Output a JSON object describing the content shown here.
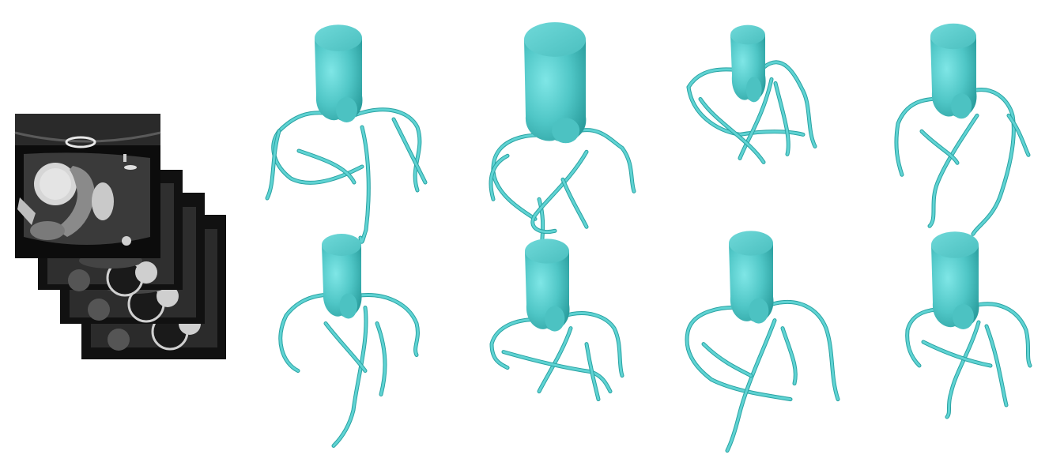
{
  "figure": {
    "background": "#ffffff",
    "ct_stack": {
      "slice_count": 4,
      "frame_color": "#0a0a0a",
      "tissue_color": "#3a3a3a",
      "contrast_color": "#d8d8d8"
    },
    "models": {
      "count": 8,
      "rows": 2,
      "columns": 4,
      "surface_color": "#5fd3d3",
      "shadow_color": "#2aa3a3",
      "cap_color": "#6ad8d8"
    }
  }
}
